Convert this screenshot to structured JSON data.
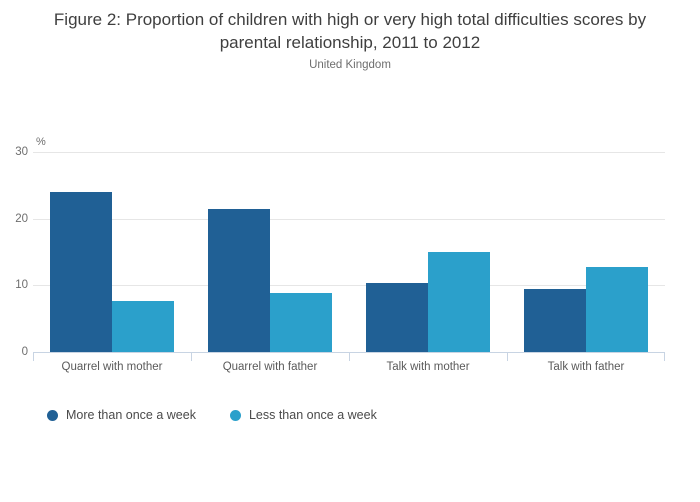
{
  "chart_data": {
    "type": "bar",
    "title": "Figure 2: Proportion of children with high or very high total difficulties scores by parental relationship, 2011 to 2012",
    "subtitle": "United Kingdom",
    "unit_label": "%",
    "categories": [
      "Quarrel with mother",
      "Quarrel with father",
      "Talk with mother",
      "Talk with father"
    ],
    "series": [
      {
        "name": "More than once a week",
        "color": "#206095",
        "values": [
          24.0,
          21.4,
          10.4,
          9.5
        ]
      },
      {
        "name": "Less than once a week",
        "color": "#2ba0cb",
        "values": [
          7.7,
          8.9,
          15.0,
          12.8
        ]
      }
    ],
    "ylim": [
      0,
      30
    ],
    "yticks": [
      0,
      10,
      20,
      30
    ],
    "grid": true,
    "legend_position": "bottom-left"
  },
  "colors": {
    "series_dark": "#206095",
    "series_light": "#2ba0cb",
    "gridline": "#e6e6e6",
    "axis_line": "#c8d4e3",
    "title_text": "#3f3f3f",
    "muted_text": "#6e6e6e",
    "label_text": "#5a5a5a"
  }
}
